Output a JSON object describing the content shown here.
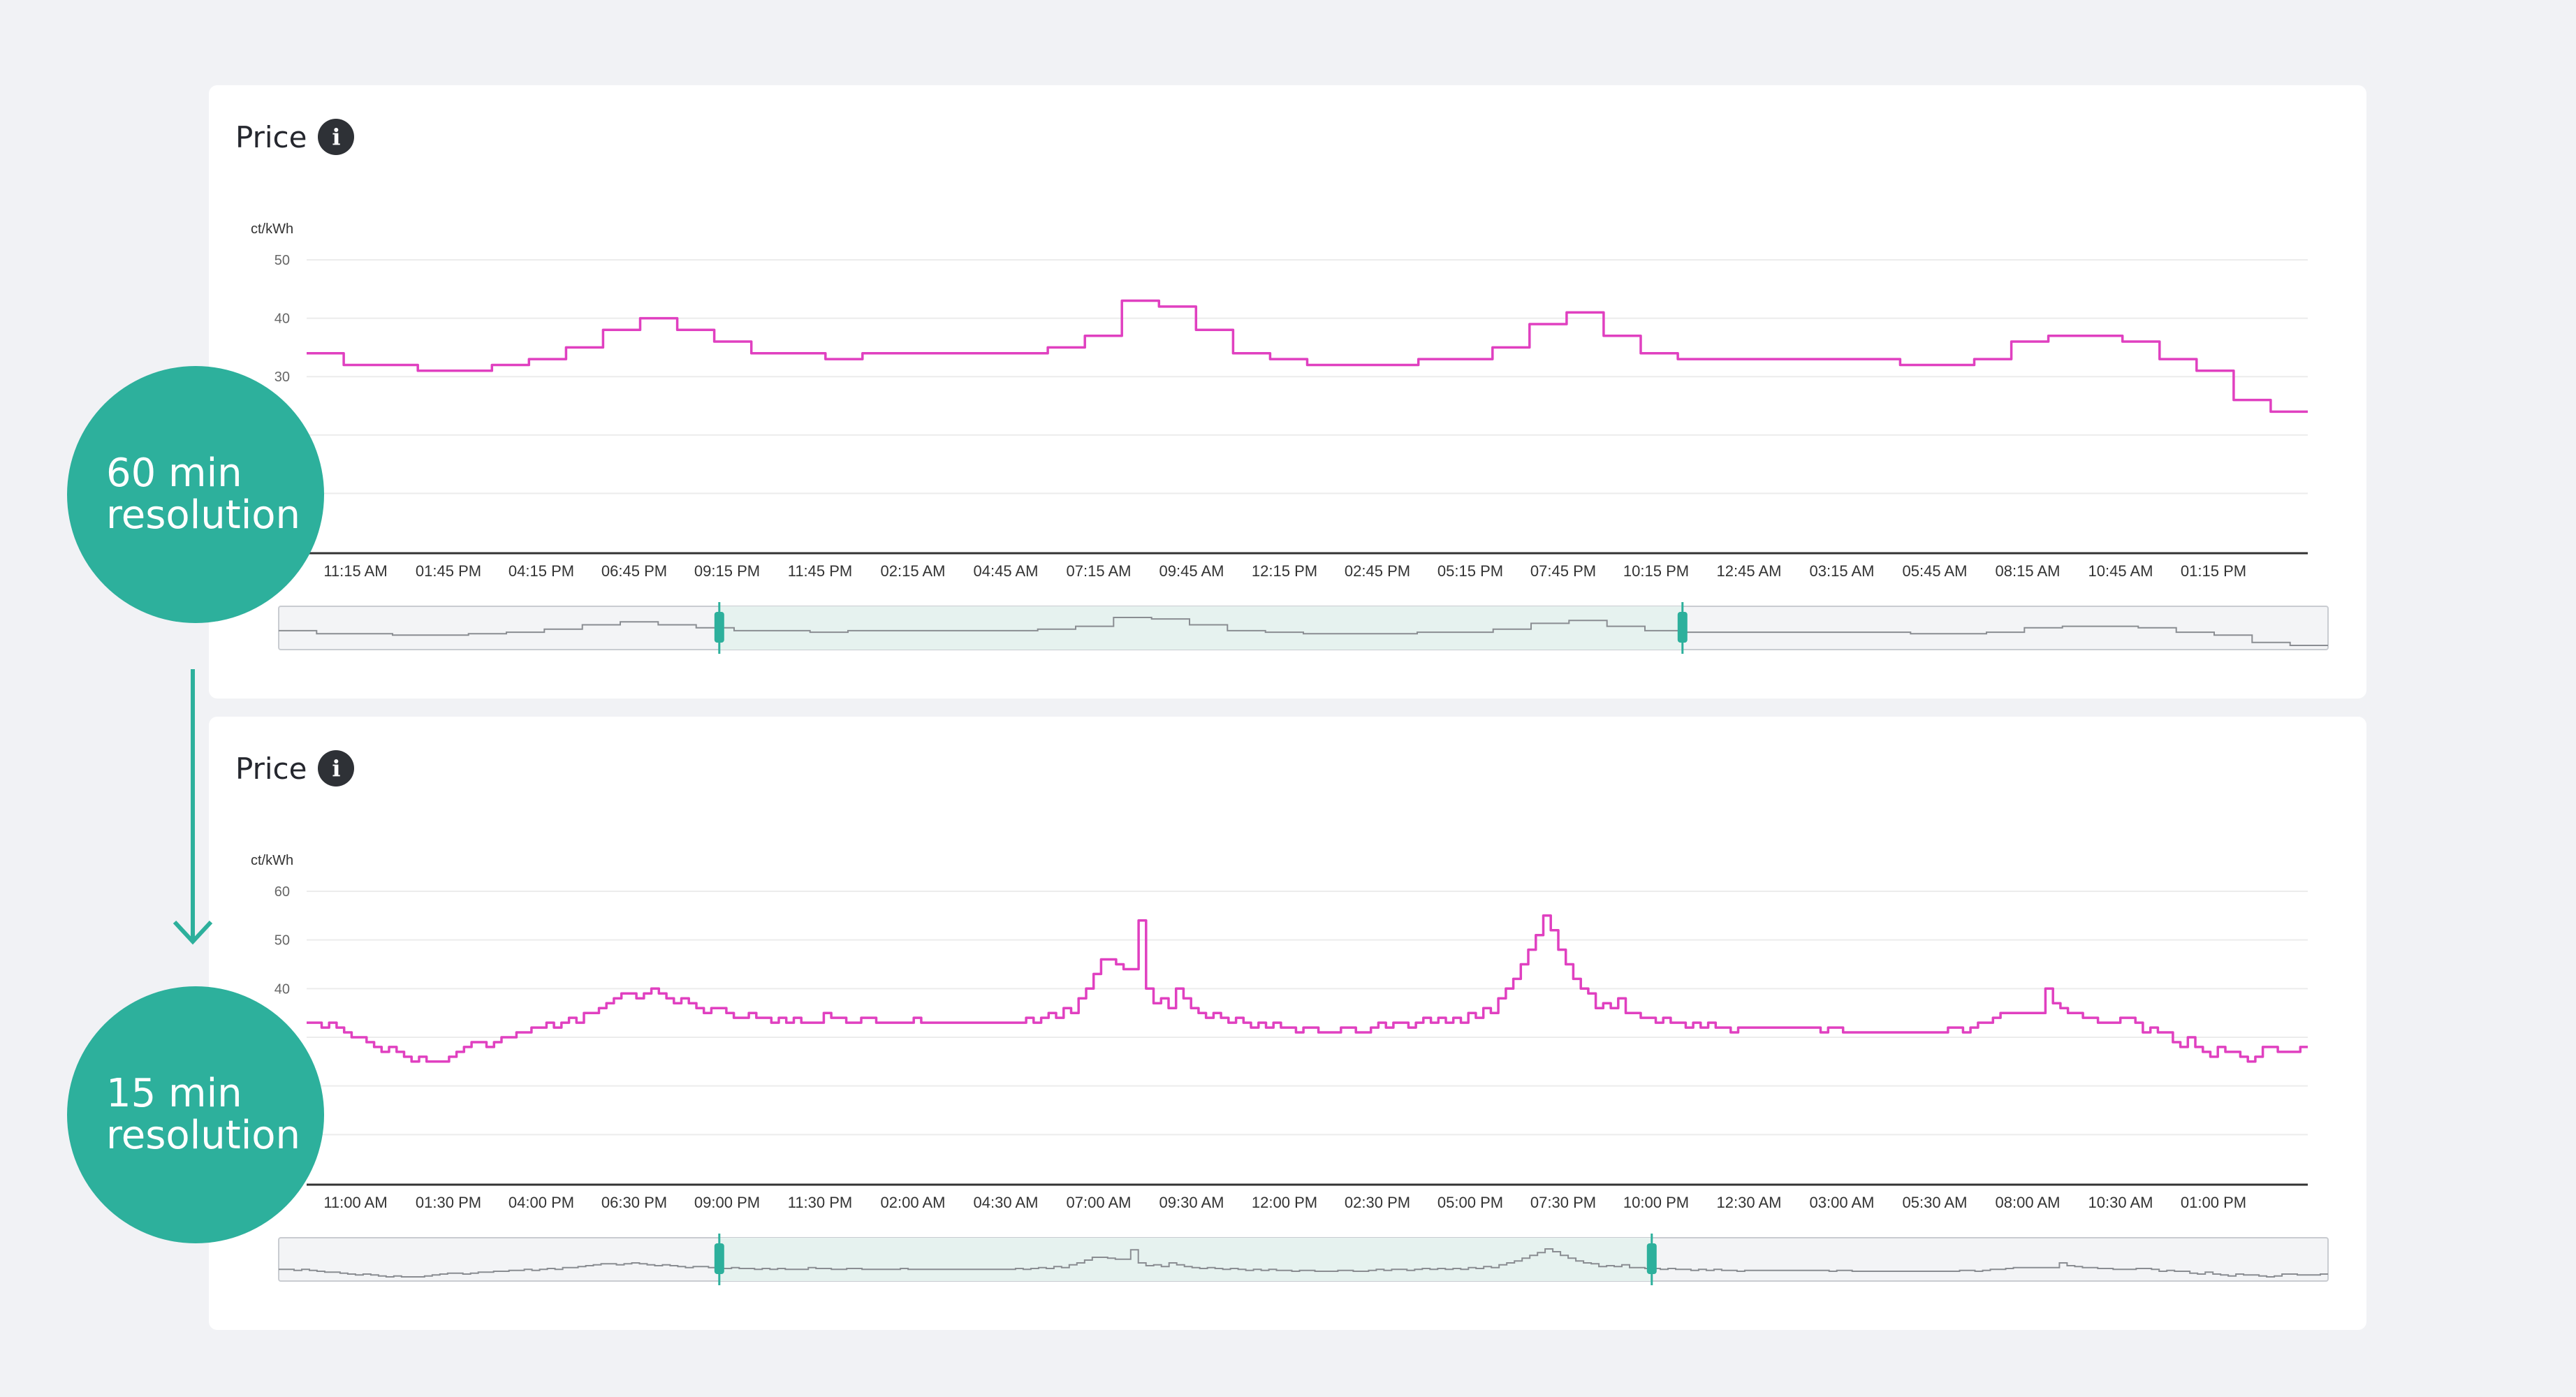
{
  "colors": {
    "line": "#e040c0",
    "accent": "#2db09c",
    "navigator_fill": "#e6f2ef",
    "navigator_bg": "#f3f4f6",
    "axis": "#333333",
    "grid": "#ececec"
  },
  "badges": {
    "top": {
      "line1": "60 min",
      "line2": "resolution"
    },
    "bottom": {
      "line1": "15 min",
      "line2": "resolution"
    }
  },
  "chart_data": [
    {
      "type": "line",
      "title": "Price",
      "icon": "info-icon",
      "ylabel": "ct/kWh",
      "ylim": [
        0,
        50
      ],
      "yticks": [
        30,
        40,
        50
      ],
      "grid": true,
      "x_tick_labels": [
        "11:15 AM",
        "01:45 PM",
        "04:15 PM",
        "06:45 PM",
        "09:15 PM",
        "11:45 PM",
        "02:15 AM",
        "04:45 AM",
        "07:15 AM",
        "09:45 AM",
        "12:15 PM",
        "02:45 PM",
        "05:15 PM",
        "07:45 PM",
        "10:15 PM",
        "12:45 AM",
        "03:15 AM",
        "05:45 AM",
        "08:15 AM",
        "10:45 AM",
        "01:15 PM"
      ],
      "series": [
        {
          "values": [
            34,
            32,
            32,
            31,
            31,
            32,
            33,
            35,
            38,
            40,
            38,
            36,
            34,
            34,
            33,
            34,
            34,
            34,
            34,
            34,
            35,
            37,
            43,
            42,
            38,
            34,
            33,
            32,
            32,
            32,
            33,
            33,
            35,
            39,
            41,
            37,
            34,
            33,
            33,
            33,
            33,
            33,
            33,
            32,
            32,
            33,
            36,
            37,
            37,
            36,
            33,
            31,
            26,
            24
          ]
        }
      ],
      "navigator": {
        "selected_from": 0.215,
        "selected_to": 0.685
      }
    },
    {
      "type": "line",
      "title": "Price",
      "icon": "info-icon",
      "ylabel": "ct/kWh",
      "ylim": [
        0,
        60
      ],
      "yticks": [
        40,
        50,
        60
      ],
      "grid": true,
      "x_tick_labels": [
        "11:00 AM",
        "01:30 PM",
        "04:00 PM",
        "06:30 PM",
        "09:00 PM",
        "11:30 PM",
        "02:00 AM",
        "04:30 AM",
        "07:00 AM",
        "09:30 AM",
        "12:00 PM",
        "02:30 PM",
        "05:00 PM",
        "07:30 PM",
        "10:00 PM",
        "12:30 AM",
        "03:00 AM",
        "05:30 AM",
        "08:00 AM",
        "10:30 AM",
        "01:00 PM"
      ],
      "series": [
        {
          "values": [
            33,
            33,
            32,
            33,
            32,
            31,
            30,
            30,
            29,
            28,
            27,
            28,
            27,
            26,
            25,
            26,
            25,
            25,
            25,
            26,
            27,
            28,
            29,
            29,
            28,
            29,
            30,
            30,
            31,
            31,
            32,
            32,
            33,
            32,
            33,
            34,
            33,
            35,
            35,
            36,
            37,
            38,
            39,
            39,
            38,
            39,
            40,
            39,
            38,
            37,
            38,
            37,
            36,
            35,
            36,
            36,
            35,
            34,
            34,
            35,
            34,
            34,
            33,
            34,
            33,
            34,
            33,
            33,
            33,
            35,
            34,
            34,
            33,
            33,
            34,
            34,
            33,
            33,
            33,
            33,
            33,
            34,
            33,
            33,
            33,
            33,
            33,
            33,
            33,
            33,
            33,
            33,
            33,
            33,
            33,
            33,
            34,
            33,
            34,
            35,
            34,
            36,
            35,
            38,
            40,
            43,
            46,
            46,
            45,
            44,
            44,
            54,
            40,
            37,
            38,
            36,
            40,
            38,
            36,
            35,
            34,
            35,
            34,
            33,
            34,
            33,
            32,
            33,
            32,
            33,
            32,
            32,
            31,
            32,
            32,
            31,
            31,
            31,
            32,
            32,
            31,
            31,
            32,
            33,
            32,
            33,
            33,
            32,
            33,
            34,
            33,
            34,
            33,
            34,
            33,
            35,
            34,
            36,
            35,
            38,
            40,
            42,
            45,
            48,
            51,
            55,
            52,
            48,
            45,
            42,
            40,
            39,
            36,
            37,
            36,
            38,
            35,
            35,
            34,
            34,
            33,
            34,
            33,
            33,
            32,
            33,
            32,
            33,
            32,
            32,
            31,
            32,
            32,
            32,
            32,
            32,
            32,
            32,
            32,
            32,
            32,
            32,
            31,
            32,
            32,
            31,
            31,
            31,
            31,
            31,
            31,
            31,
            31,
            31,
            31,
            31,
            31,
            31,
            31,
            32,
            32,
            31,
            32,
            33,
            33,
            34,
            35,
            35,
            35,
            35,
            35,
            35,
            40,
            37,
            36,
            35,
            35,
            34,
            34,
            33,
            33,
            33,
            34,
            34,
            33,
            31,
            32,
            31,
            31,
            29,
            28,
            30,
            28,
            27,
            26,
            28,
            27,
            27,
            26,
            25,
            26,
            28,
            28,
            27,
            27,
            27,
            28
          ]
        }
      ],
      "navigator": {
        "selected_from": 0.215,
        "selected_to": 0.67
      }
    }
  ]
}
